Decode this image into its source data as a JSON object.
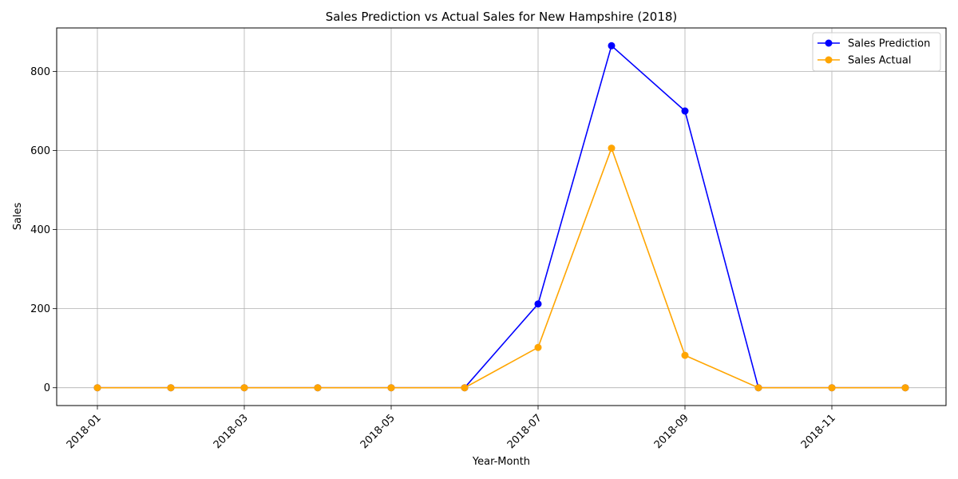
{
  "chart_data": {
    "type": "line",
    "title": "Sales Prediction vs Actual Sales for New Hampshire (2018)",
    "xlabel": "Year-Month",
    "ylabel": "Sales",
    "x": [
      "2018-01",
      "2018-02",
      "2018-03",
      "2018-04",
      "2018-05",
      "2018-06",
      "2018-07",
      "2018-08",
      "2018-09",
      "2018-10",
      "2018-11",
      "2018-12"
    ],
    "x_tick_labels": [
      "2018-01",
      "2018-03",
      "2018-05",
      "2018-07",
      "2018-09",
      "2018-11"
    ],
    "y_ticks": [
      0,
      200,
      400,
      600,
      800
    ],
    "ylim": [
      -45,
      910
    ],
    "grid": true,
    "legend_position": "top-right",
    "series": [
      {
        "name": "Sales Prediction",
        "color": "#0000ff",
        "values": [
          0,
          0,
          0,
          0,
          0,
          0,
          212,
          865,
          700,
          0,
          0,
          0
        ]
      },
      {
        "name": "Sales Actual",
        "color": "#ffa500",
        "values": [
          0,
          0,
          0,
          0,
          0,
          0,
          102,
          606,
          82,
          0,
          0,
          0
        ]
      }
    ]
  }
}
